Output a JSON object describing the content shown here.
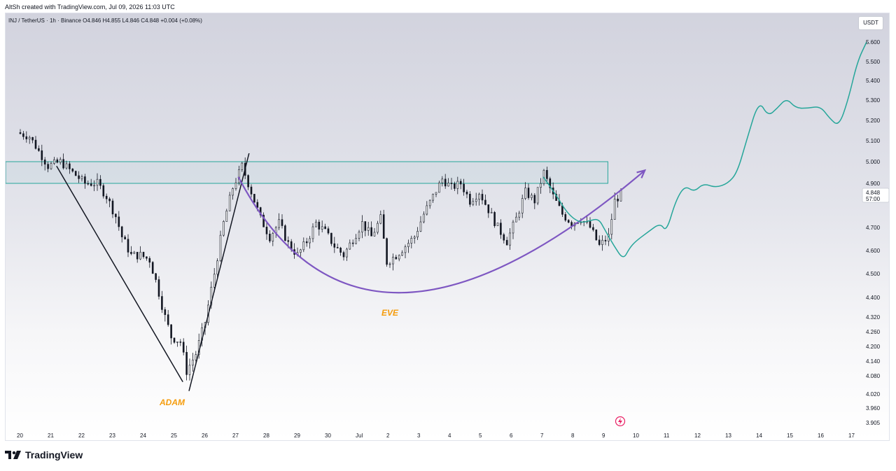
{
  "header": {
    "credit": "AltSh created with TradingView.com, Jul 09, 2026 11:03 UTC",
    "symbol_line": "INJ / TetherUS · 1h · Binance  O4.846  H4.855  L4.846  C4.848  +0.004 (+0.08%)",
    "currency_badge": "USDT"
  },
  "brand": {
    "name": "TradingView"
  },
  "colors": {
    "candle": "#131722",
    "projection": "#26a69a",
    "zone": "#26a69a",
    "curve": "#7e57c2",
    "labels": "#f59d0e",
    "line": "#131722"
  },
  "icons": {
    "replay": "lightning-icon",
    "logo": "tradingview-logo-icon"
  },
  "chart_data": {
    "type": "candlestick",
    "symbol": "INJ / TetherUS",
    "interval": "1h",
    "exchange": "Binance",
    "ohlc": {
      "open": 4.846,
      "high": 4.855,
      "low": 4.846,
      "close": 4.848,
      "change": 0.004,
      "change_pct": 0.08
    },
    "last_price": {
      "value": 4.848,
      "countdown": "57:00"
    },
    "y_ticks": [
      5.6,
      5.5,
      5.4,
      5.3,
      5.2,
      5.1,
      5.0,
      4.9,
      4.7,
      4.6,
      4.5,
      4.4,
      4.32,
      4.26,
      4.2,
      4.14,
      4.08,
      4.02,
      3.96,
      3.905
    ],
    "x_ticks": [
      "20",
      "21",
      "22",
      "23",
      "24",
      "25",
      "26",
      "27",
      "28",
      "29",
      "30",
      "Jul",
      "2",
      "3",
      "4",
      "5",
      "6",
      "7",
      "8",
      "9",
      "10",
      "11",
      "12",
      "13",
      "14",
      "15",
      "16",
      "17"
    ],
    "x_positions": [
      20,
      21,
      22,
      23,
      24,
      25,
      26,
      27,
      28,
      29,
      30,
      31,
      32,
      33,
      34,
      35,
      36,
      37,
      38,
      39,
      40,
      41,
      42,
      43,
      44,
      45,
      46,
      47
    ],
    "price_path": [
      [
        20.0,
        5.14
      ],
      [
        20.4,
        5.12
      ],
      [
        20.7,
        5.05
      ],
      [
        21.0,
        4.98
      ],
      [
        21.4,
        5.0
      ],
      [
        21.8,
        4.95
      ],
      [
        22.2,
        4.9
      ],
      [
        22.6,
        4.9
      ],
      [
        22.9,
        4.84
      ],
      [
        23.2,
        4.75
      ],
      [
        23.4,
        4.66
      ],
      [
        23.7,
        4.58
      ],
      [
        24.0,
        4.58
      ],
      [
        24.3,
        4.56
      ],
      [
        24.5,
        4.47
      ],
      [
        24.8,
        4.32
      ],
      [
        25.0,
        4.24
      ],
      [
        25.3,
        4.22
      ],
      [
        25.5,
        4.1
      ],
      [
        25.8,
        4.17
      ],
      [
        26.1,
        4.3
      ],
      [
        26.4,
        4.5
      ],
      [
        26.7,
        4.72
      ],
      [
        27.0,
        4.88
      ],
      [
        27.3,
        4.98
      ],
      [
        27.6,
        4.86
      ],
      [
        27.9,
        4.74
      ],
      [
        28.2,
        4.66
      ],
      [
        28.5,
        4.72
      ],
      [
        28.8,
        4.63
      ],
      [
        29.1,
        4.58
      ],
      [
        29.4,
        4.64
      ],
      [
        29.7,
        4.72
      ],
      [
        30.0,
        4.68
      ],
      [
        30.3,
        4.62
      ],
      [
        30.6,
        4.58
      ],
      [
        30.9,
        4.65
      ],
      [
        31.2,
        4.72
      ],
      [
        31.5,
        4.66
      ],
      [
        31.8,
        4.74
      ],
      [
        32.0,
        4.55
      ],
      [
        32.3,
        4.58
      ],
      [
        32.6,
        4.62
      ],
      [
        32.9,
        4.66
      ],
      [
        33.2,
        4.76
      ],
      [
        33.5,
        4.84
      ],
      [
        33.8,
        4.92
      ],
      [
        34.1,
        4.88
      ],
      [
        34.4,
        4.9
      ],
      [
        34.7,
        4.82
      ],
      [
        35.0,
        4.86
      ],
      [
        35.3,
        4.78
      ],
      [
        35.6,
        4.7
      ],
      [
        35.9,
        4.64
      ],
      [
        36.2,
        4.74
      ],
      [
        36.5,
        4.86
      ],
      [
        36.8,
        4.82
      ],
      [
        37.1,
        4.95
      ],
      [
        37.4,
        4.84
      ],
      [
        37.7,
        4.76
      ],
      [
        38.0,
        4.72
      ],
      [
        38.3,
        4.74
      ],
      [
        38.6,
        4.7
      ],
      [
        38.9,
        4.62
      ],
      [
        39.2,
        4.66
      ],
      [
        39.4,
        4.82
      ],
      [
        39.6,
        4.85
      ]
    ],
    "annotations": {
      "resistance_zone": {
        "top": 5.0,
        "bottom": 4.9,
        "x_start": 20.0,
        "x_end": 39.1
      },
      "adam_leg1": [
        [
          21.2,
          4.98
        ],
        [
          25.3,
          4.06
        ]
      ],
      "adam_leg2": [
        [
          25.5,
          4.03
        ],
        [
          27.45,
          5.04
        ]
      ],
      "eve_curve": [
        [
          27.1,
          4.93
        ],
        [
          32.4,
          4.42
        ],
        [
          40.3,
          4.96
        ]
      ],
      "projection": [
        [
          37.0,
          4.93
        ],
        [
          37.4,
          4.85
        ],
        [
          37.8,
          4.76
        ],
        [
          38.2,
          4.72
        ],
        [
          38.5,
          4.73
        ],
        [
          38.8,
          4.74
        ],
        [
          39.0,
          4.69
        ],
        [
          39.3,
          4.62
        ],
        [
          39.6,
          4.56
        ],
        [
          39.8,
          4.61
        ],
        [
          40.0,
          4.64
        ],
        [
          40.4,
          4.68
        ],
        [
          40.8,
          4.72
        ],
        [
          41.0,
          4.68
        ],
        [
          41.3,
          4.82
        ],
        [
          41.6,
          4.89
        ],
        [
          41.9,
          4.86
        ],
        [
          42.2,
          4.9
        ],
        [
          42.6,
          4.88
        ],
        [
          43.0,
          4.9
        ],
        [
          43.3,
          4.95
        ],
        [
          43.6,
          5.1
        ],
        [
          44.0,
          5.3
        ],
        [
          44.3,
          5.22
        ],
        [
          44.6,
          5.26
        ],
        [
          44.9,
          5.31
        ],
        [
          45.2,
          5.26
        ],
        [
          45.6,
          5.26
        ],
        [
          46.0,
          5.27
        ],
        [
          46.3,
          5.21
        ],
        [
          46.6,
          5.17
        ],
        [
          46.9,
          5.3
        ],
        [
          47.2,
          5.5
        ],
        [
          47.5,
          5.6
        ]
      ]
    },
    "pattern_labels": [
      "ADAM",
      "EVE"
    ]
  }
}
